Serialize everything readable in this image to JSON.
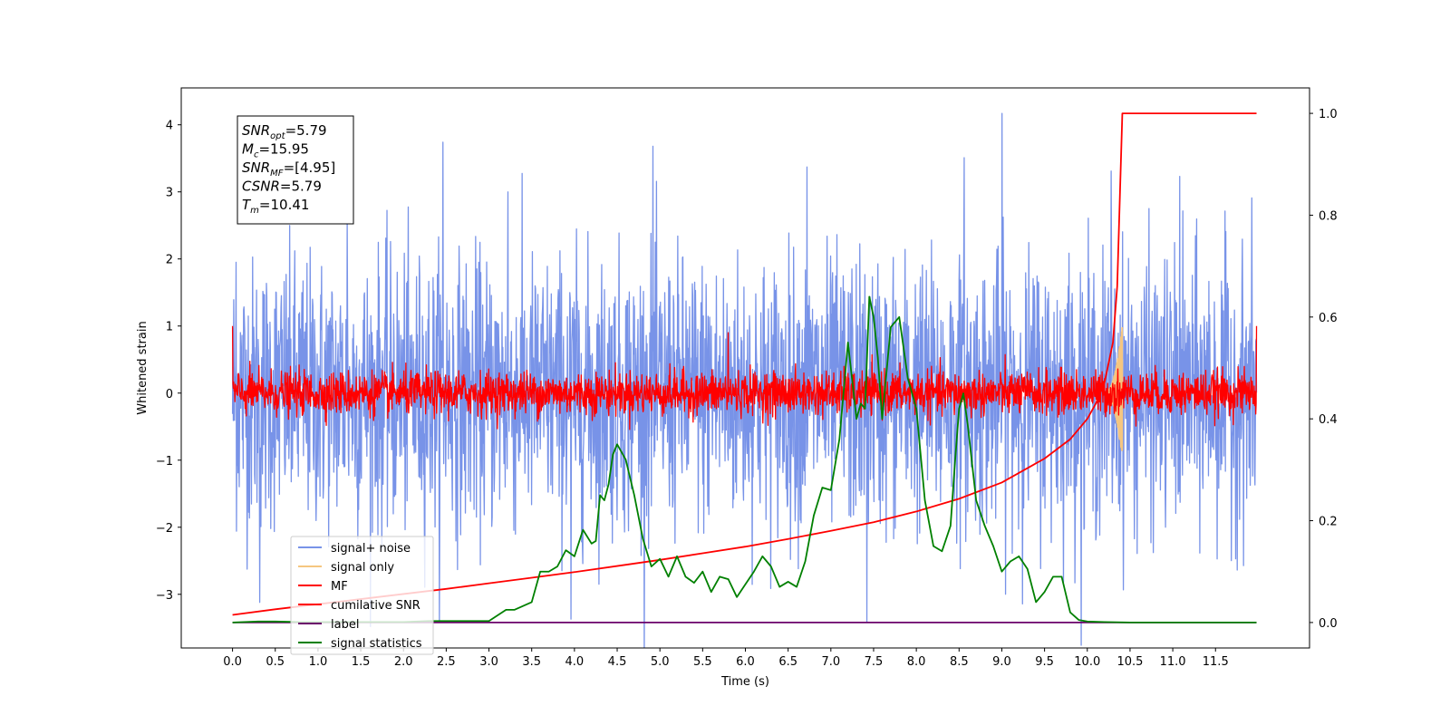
{
  "chart_data": {
    "type": "line",
    "title": "",
    "xlabel": "Time (s)",
    "ylabel": "Whitened strain",
    "xlim": [
      -0.6,
      12.6
    ],
    "ylim": [
      -3.8,
      4.55
    ],
    "y2lim": [
      -0.05,
      1.05
    ],
    "x_ticks": [
      0.0,
      0.5,
      1.0,
      1.5,
      2.0,
      2.5,
      3.0,
      3.5,
      4.0,
      4.5,
      5.0,
      5.5,
      6.0,
      6.5,
      7.0,
      7.5,
      8.0,
      8.5,
      9.0,
      9.5,
      10.0,
      10.5,
      11.0,
      11.5
    ],
    "x_tick_labels": [
      "0.0",
      "0.5",
      "1.0",
      "1.5",
      "2.0",
      "2.5",
      "3.0",
      "3.5",
      "4.0",
      "4.5",
      "5.0",
      "5.5",
      "6.0",
      "6.5",
      "7.0",
      "7.5",
      "8.0",
      "8.5",
      "9.0",
      "9.5",
      "10.0",
      "10.5",
      "11.0",
      "11.5"
    ],
    "y_ticks": [
      -3,
      -2,
      -1,
      0,
      1,
      2,
      3,
      4
    ],
    "y_tick_labels": [
      "−3",
      "−2",
      "−1",
      "0",
      "1",
      "2",
      "3",
      "4"
    ],
    "y2_ticks": [
      0.0,
      0.2,
      0.4,
      0.6,
      0.8,
      1.0
    ],
    "y2_tick_labels": [
      "0.0",
      "0.2",
      "0.4",
      "0.6",
      "0.8",
      "1.0"
    ],
    "grid": false,
    "legend_position": "lower-left",
    "annotation": {
      "lines": [
        {
          "main": "SNR",
          "sub": "opt",
          "value": "=5.79"
        },
        {
          "main": "M",
          "sub": "c",
          "value": "=15.95"
        },
        {
          "main": "SNR",
          "sub": "MF",
          "value": "=[4.95]"
        },
        {
          "main": "CSNR",
          "sub": "",
          "value": "=5.79"
        },
        {
          "main": "T",
          "sub": "m",
          "value": "=10.41"
        }
      ]
    },
    "series": [
      {
        "name": "signal+ noise",
        "color": "#7893e8",
        "axis": "left",
        "style": "noise",
        "x_range": [
          0.0,
          11.98
        ],
        "amplitude": 1.0,
        "spikes": [
          {
            "x": 0.04,
            "y": 1.95
          },
          {
            "x": 0.32,
            "y": -3.12
          },
          {
            "x": 1.34,
            "y": 2.62
          },
          {
            "x": 2.46,
            "y": 3.74
          },
          {
            "x": 3.22,
            "y": 3.0
          },
          {
            "x": 3.96,
            "y": -3.37
          },
          {
            "x": 4.92,
            "y": 3.68
          },
          {
            "x": 6.72,
            "y": 3.37
          },
          {
            "x": 7.42,
            "y": -3.42
          },
          {
            "x": 8.56,
            "y": 3.51
          },
          {
            "x": 9.0,
            "y": 4.17
          },
          {
            "x": 10.28,
            "y": 3.31
          },
          {
            "x": 11.08,
            "y": 3.23
          }
        ]
      },
      {
        "name": "signal only",
        "color": "#f5c680",
        "axis": "left",
        "style": "chirp",
        "x_range": [
          10.2,
          10.41
        ],
        "peak": 1.0
      },
      {
        "name": "MF",
        "color": "#ff0000",
        "axis": "left",
        "style": "noise",
        "x_range": [
          0.0,
          11.98
        ],
        "amplitude": 0.16,
        "spikes": [
          {
            "x": 0.0,
            "y": 1.0
          },
          {
            "x": 5.8,
            "y": 0.9
          },
          {
            "x": 11.98,
            "y": 1.0
          }
        ]
      },
      {
        "name": "cumilative SNR",
        "color": "#ff0000",
        "axis": "right",
        "x": [
          0.0,
          0.5,
          1.0,
          1.5,
          2.0,
          2.5,
          3.0,
          3.5,
          4.0,
          4.5,
          5.0,
          5.5,
          6.0,
          6.5,
          7.0,
          7.5,
          8.0,
          8.5,
          9.0,
          9.5,
          9.8,
          10.0,
          10.1,
          10.2,
          10.3,
          10.35,
          10.41,
          10.5,
          11.0,
          11.98
        ],
        "values": [
          0.015,
          0.026,
          0.036,
          0.046,
          0.056,
          0.066,
          0.077,
          0.088,
          0.099,
          0.111,
          0.123,
          0.136,
          0.149,
          0.164,
          0.18,
          0.197,
          0.218,
          0.243,
          0.275,
          0.322,
          0.36,
          0.4,
          0.43,
          0.47,
          0.55,
          0.66,
          1.0,
          1.0,
          1.0,
          1.0
        ]
      },
      {
        "name": "label",
        "color": "#6a006a",
        "axis": "right",
        "x": [
          0.0,
          11.98
        ],
        "values": [
          0.0,
          0.0
        ]
      },
      {
        "name": "signal statistics",
        "color": "#008000",
        "axis": "right",
        "x": [
          0.0,
          0.3,
          0.5,
          0.8,
          1.0,
          1.5,
          2.0,
          2.3,
          2.5,
          3.0,
          3.2,
          3.3,
          3.5,
          3.6,
          3.7,
          3.8,
          3.9,
          4.0,
          4.1,
          4.2,
          4.25,
          4.3,
          4.35,
          4.4,
          4.45,
          4.5,
          4.6,
          4.7,
          4.8,
          4.9,
          5.0,
          5.1,
          5.2,
          5.3,
          5.4,
          5.5,
          5.6,
          5.7,
          5.8,
          5.9,
          6.0,
          6.1,
          6.2,
          6.3,
          6.4,
          6.5,
          6.6,
          6.7,
          6.8,
          6.9,
          7.0,
          7.1,
          7.2,
          7.3,
          7.35,
          7.4,
          7.45,
          7.5,
          7.55,
          7.6,
          7.7,
          7.8,
          7.9,
          8.0,
          8.1,
          8.2,
          8.3,
          8.4,
          8.45,
          8.5,
          8.55,
          8.6,
          8.7,
          8.8,
          8.9,
          9.0,
          9.1,
          9.2,
          9.3,
          9.4,
          9.5,
          9.6,
          9.7,
          9.8,
          9.9,
          10.0,
          10.2,
          10.5,
          11.0,
          11.98
        ],
        "values": [
          0.0,
          0.002,
          0.002,
          0.001,
          0.001,
          0.001,
          0.001,
          0.003,
          0.003,
          0.003,
          0.025,
          0.025,
          0.04,
          0.1,
          0.1,
          0.11,
          0.142,
          0.13,
          0.182,
          0.155,
          0.16,
          0.25,
          0.24,
          0.272,
          0.33,
          0.35,
          0.32,
          0.25,
          0.165,
          0.11,
          0.125,
          0.09,
          0.13,
          0.09,
          0.078,
          0.1,
          0.06,
          0.09,
          0.085,
          0.05,
          0.075,
          0.1,
          0.13,
          0.11,
          0.07,
          0.08,
          0.07,
          0.12,
          0.21,
          0.265,
          0.26,
          0.36,
          0.55,
          0.4,
          0.43,
          0.42,
          0.64,
          0.6,
          0.52,
          0.4,
          0.58,
          0.6,
          0.48,
          0.42,
          0.24,
          0.15,
          0.14,
          0.19,
          0.31,
          0.42,
          0.45,
          0.39,
          0.24,
          0.19,
          0.15,
          0.1,
          0.12,
          0.13,
          0.105,
          0.04,
          0.06,
          0.09,
          0.09,
          0.02,
          0.005,
          0.002,
          0.001,
          0.0,
          0.0,
          0.0
        ]
      }
    ]
  }
}
